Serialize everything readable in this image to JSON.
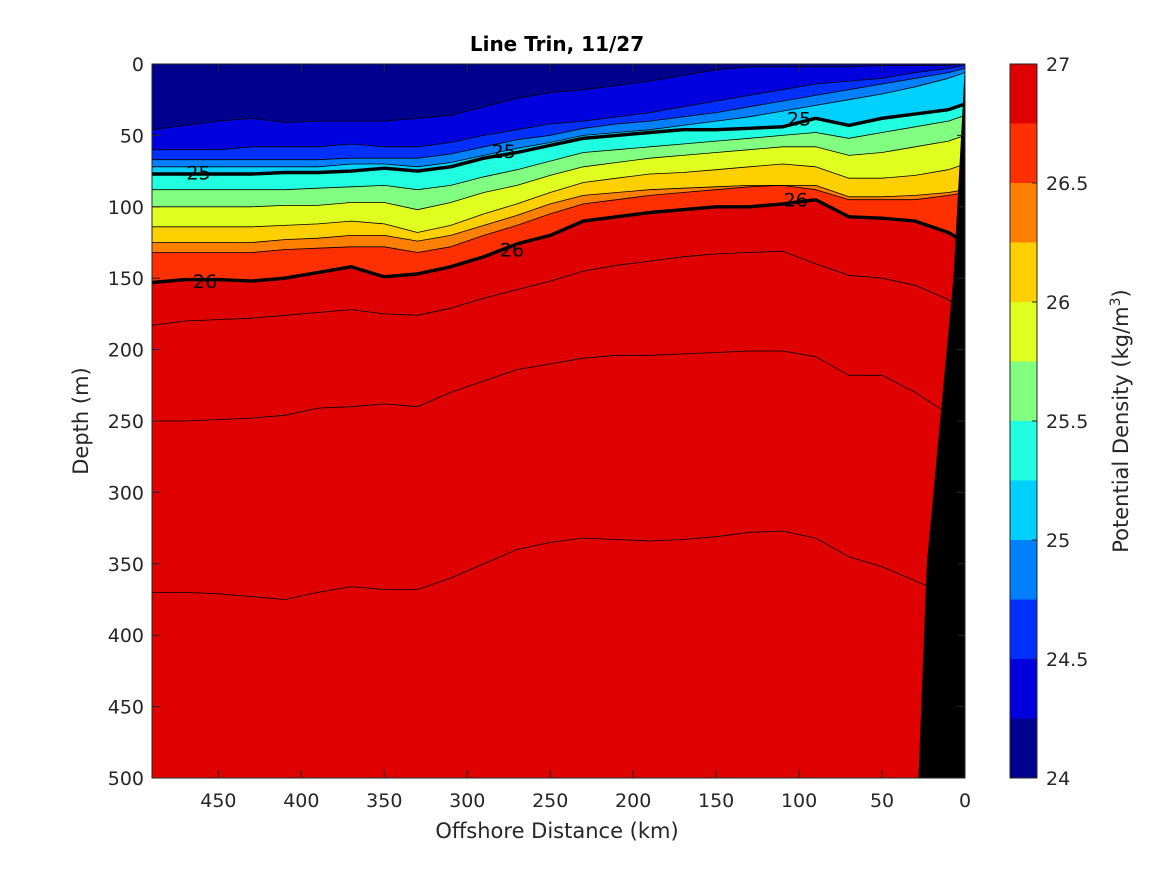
{
  "chart_data": {
    "type": "heatmap",
    "subtype": "filled-contour",
    "title": "Line Trin, 11/27",
    "xlabel": "Offshore Distance (km)",
    "ylabel": "Depth (m)",
    "xlim": [
      490,
      0
    ],
    "ylim": [
      0,
      500
    ],
    "x_reversed": true,
    "y_reversed": true,
    "x_ticks": [
      450,
      400,
      350,
      300,
      250,
      200,
      150,
      100,
      50,
      0
    ],
    "y_ticks": [
      0,
      50,
      100,
      150,
      200,
      250,
      300,
      350,
      400,
      450,
      500
    ],
    "colorbar": {
      "label": "Potential Density (kg/m³)",
      "label_base": "Potential Density (kg/m",
      "label_sup": "3",
      "label_close": ")",
      "min": 24,
      "max": 27,
      "ticks": [
        24,
        24.5,
        25,
        25.5,
        26,
        26.5,
        27
      ],
      "levels": [
        24,
        24.25,
        24.5,
        24.75,
        25,
        25.25,
        25.5,
        25.75,
        26,
        26.25,
        26.5,
        26.75,
        27
      ],
      "colors": [
        "#00008f",
        "#0000df",
        "#0030ff",
        "#0080ff",
        "#00d0ff",
        "#20ffdf",
        "#80ff80",
        "#dfff20",
        "#ffd000",
        "#ff8000",
        "#ff3000",
        "#df0000"
      ]
    },
    "isopycnals": {
      "x": [
        490,
        470,
        450,
        430,
        410,
        390,
        370,
        350,
        330,
        310,
        290,
        270,
        250,
        230,
        210,
        190,
        170,
        150,
        130,
        110,
        90,
        70,
        50,
        30,
        10,
        0
      ],
      "depths": [
        [
          46,
          43,
          40,
          38,
          41,
          40,
          40,
          40,
          38,
          36,
          30,
          24,
          20,
          18,
          15,
          12,
          8,
          4,
          2,
          2,
          2,
          2,
          1,
          1,
          1,
          0
        ],
        [
          60,
          60,
          60,
          58,
          58,
          58,
          56,
          58,
          58,
          55,
          50,
          46,
          42,
          40,
          37,
          34,
          30,
          26,
          22,
          18,
          14,
          12,
          10,
          6,
          3,
          1
        ],
        [
          67,
          67,
          67,
          67,
          67,
          67,
          66,
          66,
          66,
          63,
          58,
          53,
          50,
          45,
          42,
          40,
          37,
          34,
          30,
          26,
          22,
          18,
          14,
          10,
          6,
          3
        ],
        [
          72,
          72,
          72,
          72,
          72,
          72,
          70,
          70,
          72,
          69,
          64,
          59,
          55,
          50,
          48,
          46,
          43,
          40,
          37,
          33,
          29,
          25,
          21,
          16,
          10,
          6
        ],
        [
          77,
          77,
          77,
          77,
          76,
          76,
          75,
          73,
          75,
          72,
          66,
          62,
          57,
          52,
          50,
          48,
          46,
          46,
          45,
          44,
          38,
          43,
          38,
          35,
          32,
          28
        ],
        [
          88,
          88,
          88,
          88,
          88,
          87,
          86,
          85,
          88,
          85,
          79,
          74,
          68,
          62,
          60,
          58,
          56,
          54,
          52,
          50,
          48,
          52,
          48,
          44,
          40,
          36
        ],
        [
          100,
          100,
          100,
          100,
          99,
          99,
          97,
          97,
          102,
          97,
          90,
          85,
          78,
          72,
          69,
          66,
          64,
          62,
          60,
          58,
          58,
          64,
          62,
          58,
          54,
          50
        ],
        [
          114,
          114,
          114,
          114,
          113,
          112,
          110,
          112,
          118,
          113,
          105,
          98,
          90,
          83,
          80,
          77,
          76,
          74,
          72,
          70,
          72,
          80,
          80,
          78,
          74,
          70
        ],
        [
          125,
          125,
          125,
          125,
          123,
          122,
          120,
          120,
          124,
          120,
          113,
          106,
          98,
          92,
          90,
          88,
          87,
          86,
          85,
          85,
          85,
          93,
          93,
          92,
          90,
          88
        ],
        [
          132,
          132,
          132,
          132,
          130,
          129,
          128,
          128,
          132,
          128,
          120,
          113,
          105,
          98,
          95,
          92,
          90,
          88,
          86,
          85,
          88,
          95,
          95,
          95,
          92,
          90
        ],
        [
          153,
          151,
          151,
          152,
          150,
          146,
          142,
          149,
          147,
          142,
          135,
          126,
          120,
          110,
          107,
          104,
          102,
          100,
          100,
          98,
          95,
          107,
          108,
          110,
          118,
          125
        ],
        [
          183,
          180,
          179,
          178,
          176,
          174,
          172,
          175,
          176,
          171,
          164,
          158,
          152,
          145,
          141,
          138,
          135,
          133,
          132,
          131,
          140,
          148,
          150,
          155,
          165,
          175
        ],
        [
          250,
          250,
          249,
          248,
          246,
          241,
          240,
          238,
          240,
          230,
          222,
          214,
          210,
          206,
          204,
          204,
          203,
          202,
          201,
          201,
          205,
          218,
          218,
          230,
          245,
          255
        ],
        [
          370,
          370,
          371,
          373,
          375,
          370,
          366,
          368,
          368,
          360,
          350,
          340,
          335,
          332,
          333,
          334,
          333,
          331,
          328,
          327,
          332,
          345,
          352,
          362,
          372,
          380
        ]
      ]
    },
    "contour_labels": [
      {
        "text": "25",
        "x": 462,
        "y": 76
      },
      {
        "text": "25",
        "x": 278,
        "y": 61
      },
      {
        "text": "25",
        "x": 100,
        "y": 38
      },
      {
        "text": "26",
        "x": 458,
        "y": 152
      },
      {
        "text": "26",
        "x": 273,
        "y": 130
      },
      {
        "text": "26",
        "x": 102,
        "y": 95
      }
    ],
    "bathymetry": {
      "name": "seafloor",
      "color": "#000000",
      "x": [
        0,
        0,
        28,
        23,
        7
      ],
      "y": [
        0,
        500,
        500,
        350,
        150
      ]
    }
  }
}
